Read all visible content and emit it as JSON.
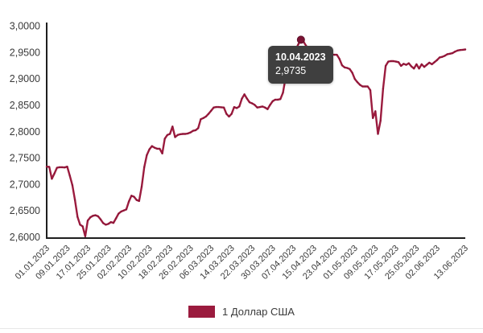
{
  "colors": {
    "line": "#9B1B3E",
    "line_beads": "#7D1031",
    "marker": "#7A1233",
    "marker_edge": "#5C0D27",
    "axis": "#1F1F1F",
    "tooltip_bg": "#3F3F3F",
    "tooltip_text": "#FFFFFF"
  },
  "tooltip": {
    "date": "10.04.2023",
    "value": "2,9735"
  },
  "legend": {
    "label": "1 Доллар США"
  },
  "chart_data": {
    "type": "line",
    "title": "",
    "xlabel": "",
    "ylabel": "",
    "grid": false,
    "legend_position": "bottom",
    "series_name": "1 Доллар США",
    "start_date": "01.01.2023",
    "end_date": "13.06.2023",
    "frequency": "daily",
    "ylim": [
      2.6,
      3.0
    ],
    "y_tick_labels": [
      "3,0000",
      "2,9500",
      "2,9000",
      "2,8500",
      "2,8000",
      "2,7500",
      "2,7000",
      "2,6500",
      "2,6000"
    ],
    "y_tick_values": [
      3.0,
      2.95,
      2.9,
      2.85,
      2.8,
      2.75,
      2.7,
      2.65,
      2.6
    ],
    "x_tick_labels": [
      "01.01.2023",
      "09.01.2023",
      "17.01.2023",
      "25.01.2023",
      "02.02.2023",
      "10.02.2023",
      "18.02.2023",
      "26.02.2023",
      "06.03.2023",
      "14.03.2023",
      "22.03.2023",
      "30.03.2023",
      "07.04.2023",
      "15.04.2023",
      "23.04.2023",
      "01.05.2023",
      "09.05.2023",
      "17.05.2023",
      "25.05.2023",
      "02.06.2023",
      "13.06.2023"
    ],
    "x_tick_indices": [
      0,
      8,
      16,
      24,
      32,
      40,
      48,
      56,
      64,
      72,
      80,
      88,
      96,
      104,
      112,
      120,
      128,
      136,
      144,
      152,
      163
    ],
    "marker": {
      "index": 99,
      "date": "10.04.2023",
      "value": 2.9735
    },
    "values": [
      2.733,
      2.7325,
      2.71,
      2.72,
      2.731,
      2.732,
      2.732,
      2.7315,
      2.733,
      2.716,
      2.698,
      2.67,
      2.638,
      2.623,
      2.62,
      2.601,
      2.631,
      2.637,
      2.64,
      2.641,
      2.639,
      2.633,
      2.626,
      2.623,
      2.6245,
      2.628,
      2.6265,
      2.635,
      2.644,
      2.648,
      2.65,
      2.652,
      2.667,
      2.678,
      2.676,
      2.67,
      2.668,
      2.695,
      2.732,
      2.755,
      2.766,
      2.772,
      2.769,
      2.767,
      2.767,
      2.758,
      2.786,
      2.793,
      2.795,
      2.809,
      2.789,
      2.793,
      2.7945,
      2.795,
      2.795,
      2.796,
      2.798,
      2.801,
      2.802,
      2.806,
      2.823,
      2.825,
      2.828,
      2.833,
      2.839,
      2.845,
      2.846,
      2.846,
      2.8455,
      2.845,
      2.833,
      2.828,
      2.833,
      2.846,
      2.844,
      2.847,
      2.862,
      2.87,
      2.862,
      2.855,
      2.853,
      2.85,
      2.845,
      2.846,
      2.847,
      2.845,
      2.842,
      2.85,
      2.857,
      2.86,
      2.86,
      2.861,
      2.873,
      2.901,
      2.905,
      2.906,
      2.93,
      2.955,
      2.965,
      2.9735,
      2.97,
      2.962,
      2.956,
      2.954,
      2.953,
      2.952,
      2.95,
      2.948,
      2.947,
      2.946,
      2.946,
      2.9455,
      2.945,
      2.945,
      2.937,
      2.925,
      2.921,
      2.92,
      2.918,
      2.911,
      2.899,
      2.893,
      2.888,
      2.885,
      2.885,
      2.885,
      2.878,
      2.825,
      2.838,
      2.795,
      2.82,
      2.881,
      2.924,
      2.932,
      2.933,
      2.933,
      2.932,
      2.931,
      2.924,
      2.928,
      2.926,
      2.929,
      2.923,
      2.919,
      2.927,
      2.919,
      2.927,
      2.922,
      2.926,
      2.93,
      2.927,
      2.931,
      2.935,
      2.94,
      2.941,
      2.943,
      2.946,
      2.947,
      2.948,
      2.951,
      2.953,
      2.954,
      2.9545,
      2.955
    ]
  }
}
